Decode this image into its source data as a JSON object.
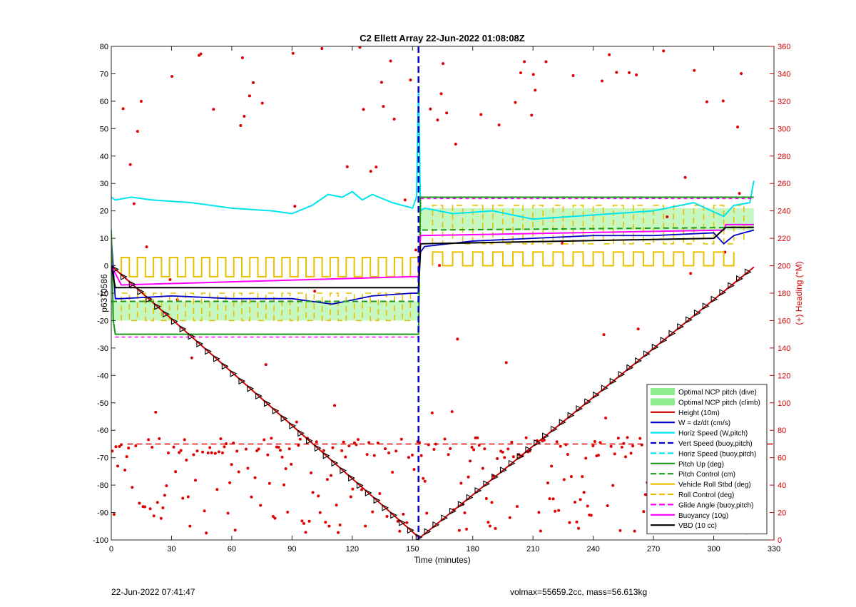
{
  "chart_data": {
    "type": "line",
    "title": "C2 Ellett Array 22-Jun-2022 01:08:08Z",
    "xlabel": "Time (minutes)",
    "ylabel": "p6370586",
    "y2label": "(+) Heading (°M)",
    "xlim": [
      0,
      330
    ],
    "ylim": [
      -100,
      80
    ],
    "y2lim": [
      0,
      360
    ],
    "xticks": [
      0,
      30,
      60,
      90,
      120,
      150,
      180,
      210,
      240,
      270,
      300,
      330
    ],
    "yticks": [
      -100,
      -90,
      -80,
      -70,
      -60,
      -50,
      -40,
      -30,
      -20,
      -10,
      0,
      10,
      20,
      30,
      40,
      50,
      60,
      70,
      80
    ],
    "y2ticks": [
      0,
      20,
      40,
      60,
      80,
      100,
      120,
      140,
      160,
      180,
      200,
      220,
      240,
      260,
      280,
      300,
      320,
      340,
      360
    ],
    "grid": false,
    "legend_position": "bottom-right",
    "apogee_time": 153,
    "legend": [
      {
        "label": "Optimal NCP pitch (dive)",
        "color": "#90ee90",
        "style": "patch"
      },
      {
        "label": "Optimal NCP pitch (climb)",
        "color": "#90ee90",
        "style": "patch"
      },
      {
        "label": "Height (10m)",
        "color": "#d00000",
        "style": "solid"
      },
      {
        "label": "W = dz/dt (cm/s)",
        "color": "#0000c8",
        "style": "solid"
      },
      {
        "label": "Horiz Speed (W,pitch)",
        "color": "#00e5ee",
        "style": "solid"
      },
      {
        "label": "Vert Speed (buoy,pitch)",
        "color": "#0000c8",
        "style": "dashed"
      },
      {
        "label": "Horiz Speed (buoy,pitch)",
        "color": "#00e5ee",
        "style": "dashed"
      },
      {
        "label": "Pitch Up (deg)",
        "color": "#1a9a1a",
        "style": "solid"
      },
      {
        "label": "Pitch Control (cm)",
        "color": "#1a9a1a",
        "style": "dashed"
      },
      {
        "label": "Vehicle Roll Stbd (deg)",
        "color": "#e8c000",
        "style": "solid"
      },
      {
        "label": "Roll Control (deg)",
        "color": "#e8c000",
        "style": "dashed"
      },
      {
        "label": "Glide Angle (buoy,pitch)",
        "color": "#ff00ff",
        "style": "dashed"
      },
      {
        "label": "Buoyancy (10g)",
        "color": "#ff00ff",
        "style": "solid"
      },
      {
        "label": "VBD (10 cc)",
        "color": "#000000",
        "style": "solid"
      }
    ],
    "series": [
      {
        "name": "Height (10m)",
        "color": "#d00000",
        "x": [
          0,
          153,
          154,
          320
        ],
        "y": [
          0,
          -99,
          -99,
          -0.5
        ]
      },
      {
        "name": "W = dz/dt (cm/s)",
        "color": "#0000c8",
        "x": [
          0,
          2,
          5,
          30,
          60,
          90,
          110,
          130,
          150,
          153,
          154,
          156,
          180,
          210,
          240,
          270,
          300,
          305,
          310,
          315,
          320
        ],
        "y": [
          10,
          -12,
          -12,
          -11,
          -12,
          -12,
          -14,
          -11,
          -10,
          -10,
          5,
          7,
          9,
          10,
          11,
          11,
          12,
          8,
          11,
          12,
          13
        ]
      },
      {
        "name": "Horiz Speed (W,pitch)",
        "color": "#00e5ee",
        "x": [
          0,
          2,
          10,
          20,
          40,
          60,
          80,
          90,
          100,
          108,
          115,
          120,
          125,
          130,
          140,
          150,
          152,
          153,
          154,
          156,
          170,
          190,
          210,
          230,
          250,
          270,
          290,
          305,
          310,
          318,
          320
        ],
        "y": [
          25,
          24,
          25,
          24,
          23,
          21,
          20,
          19,
          22,
          26,
          25,
          27,
          24,
          26,
          23,
          21,
          25,
          65,
          20,
          21,
          19,
          20,
          17,
          18,
          19,
          20,
          23,
          18,
          22,
          23,
          31
        ]
      },
      {
        "name": "Pitch Up (deg)",
        "color": "#1a9a1a",
        "x": [
          0,
          1,
          2,
          153,
          154,
          320
        ],
        "y": [
          13,
          -20,
          -25,
          -25,
          25,
          25
        ]
      },
      {
        "name": "Pitch Control (cm)",
        "color": "#1a9a1a",
        "x": [
          0,
          153,
          154,
          320
        ],
        "y": [
          -13,
          -13,
          13,
          14
        ]
      },
      {
        "name": "Buoyancy (10g)",
        "color": "#ff00ff",
        "x": [
          0,
          5,
          150,
          153,
          154,
          305,
          306,
          320
        ],
        "y": [
          0,
          -7,
          -4,
          -4,
          11,
          13,
          15,
          15
        ]
      },
      {
        "name": "VBD (10 cc)",
        "color": "#000000",
        "x": [
          0,
          2,
          152,
          153,
          154,
          300,
          306,
          320
        ],
        "y": [
          0,
          -8,
          -8,
          -8,
          8,
          10,
          14,
          14
        ]
      }
    ],
    "ncp_bands": [
      {
        "x": [
          0,
          153
        ],
        "y": [
          -20,
          -13
        ]
      },
      {
        "x": [
          154,
          320
        ],
        "y": [
          13,
          21
        ]
      }
    ],
    "roll_square_wave": {
      "dive": {
        "x_start": 5,
        "x_end": 153,
        "low": -4,
        "high": 3,
        "period": 8
      },
      "climb": {
        "x_start": 160,
        "x_end": 310,
        "low": 0,
        "high": 5,
        "period": 10
      }
    },
    "heading_control_level": 70,
    "footer_left": "22-Jun-2022 07:41:47",
    "footer_right": "volmax=55659.2cc, mass=56.613kg"
  }
}
